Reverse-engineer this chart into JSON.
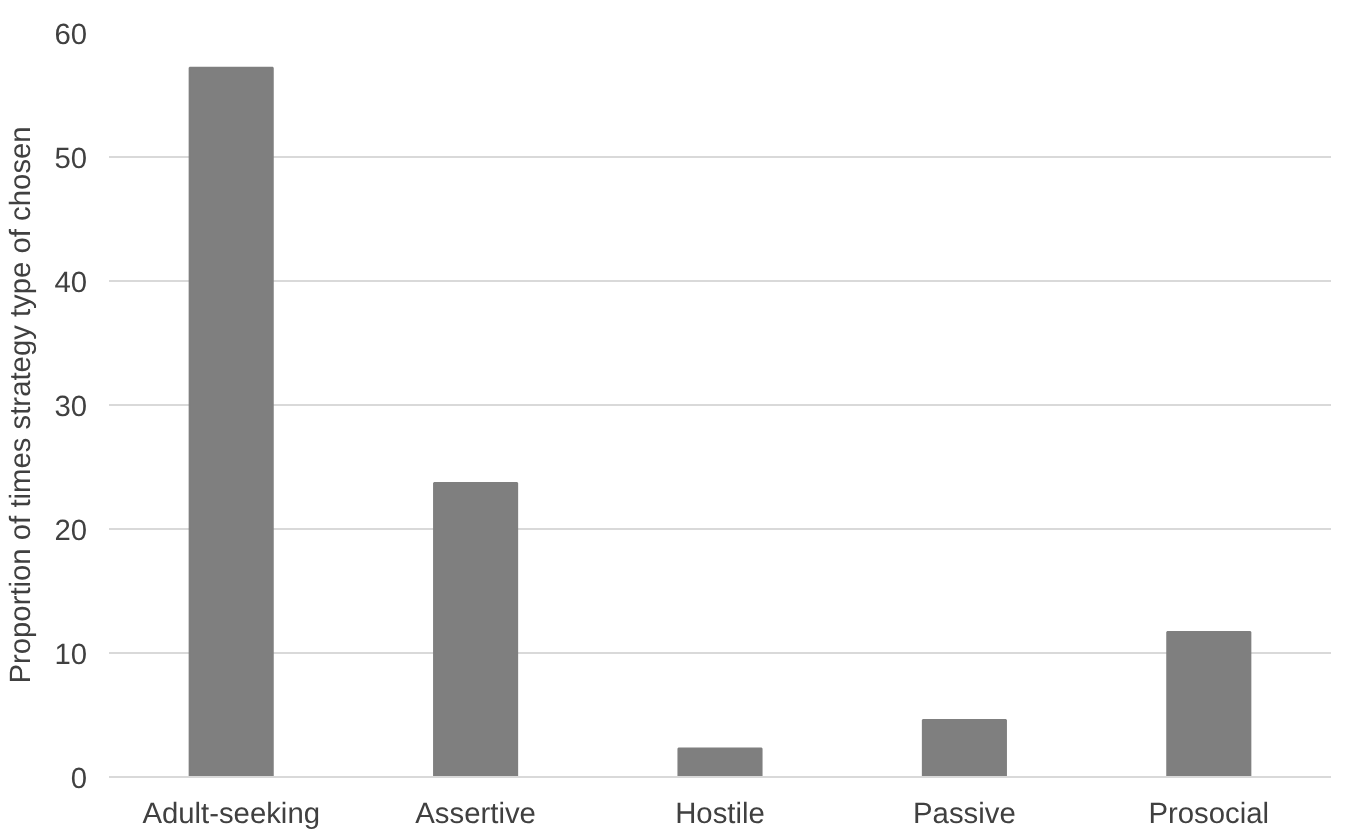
{
  "chart_data": {
    "type": "bar",
    "ylabel": "Proportion of times strategy type of chosen",
    "categories": [
      "Adult-seeking",
      "Assertive",
      "Hostile",
      "Passive",
      "Prosocial"
    ],
    "values": [
      57.2,
      23.7,
      2.3,
      4.6,
      11.7
    ],
    "color": "#7f7f7f",
    "ylim": [
      0,
      60
    ],
    "yticks": [
      0,
      10,
      20,
      30,
      40,
      50,
      60
    ],
    "grid": "y"
  }
}
